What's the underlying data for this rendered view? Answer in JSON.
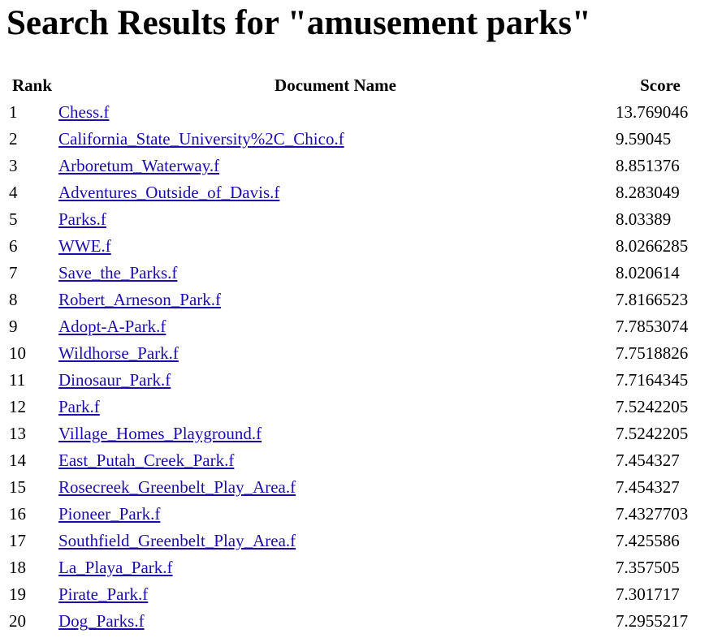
{
  "page": {
    "title": "Search Results for \"amusement parks\""
  },
  "table": {
    "headers": {
      "rank": "Rank",
      "name": "Document Name",
      "score": "Score"
    },
    "rows": [
      {
        "rank": "1",
        "name": "Chess.f",
        "score": "13.769046"
      },
      {
        "rank": "2",
        "name": "California_State_University%2C_Chico.f",
        "score": "9.59045"
      },
      {
        "rank": "3",
        "name": "Arboretum_Waterway.f",
        "score": "8.851376"
      },
      {
        "rank": "4",
        "name": "Adventures_Outside_of_Davis.f",
        "score": "8.283049"
      },
      {
        "rank": "5",
        "name": "Parks.f",
        "score": "8.03389"
      },
      {
        "rank": "6",
        "name": "WWE.f",
        "score": "8.0266285"
      },
      {
        "rank": "7",
        "name": "Save_the_Parks.f",
        "score": "8.020614"
      },
      {
        "rank": "8",
        "name": "Robert_Arneson_Park.f",
        "score": "7.8166523"
      },
      {
        "rank": "9",
        "name": "Adopt-A-Park.f",
        "score": "7.7853074"
      },
      {
        "rank": "10",
        "name": "Wildhorse_Park.f",
        "score": "7.7518826"
      },
      {
        "rank": "11",
        "name": "Dinosaur_Park.f",
        "score": "7.7164345"
      },
      {
        "rank": "12",
        "name": "Park.f",
        "score": "7.5242205"
      },
      {
        "rank": "13",
        "name": "Village_Homes_Playground.f",
        "score": "7.5242205"
      },
      {
        "rank": "14",
        "name": "East_Putah_Creek_Park.f",
        "score": "7.454327"
      },
      {
        "rank": "15",
        "name": "Rosecreek_Greenbelt_Play_Area.f",
        "score": "7.454327"
      },
      {
        "rank": "16",
        "name": "Pioneer_Park.f",
        "score": "7.4327703"
      },
      {
        "rank": "17",
        "name": "Southfield_Greenbelt_Play_Area.f",
        "score": "7.425586"
      },
      {
        "rank": "18",
        "name": "La_Playa_Park.f",
        "score": "7.357505"
      },
      {
        "rank": "19",
        "name": "Pirate_Park.f",
        "score": "7.301717"
      },
      {
        "rank": "20",
        "name": "Dog_Parks.f",
        "score": "7.2955217"
      }
    ]
  },
  "colors": {
    "link": "#1a0dab",
    "text": "#000000",
    "background": "#ffffff"
  }
}
